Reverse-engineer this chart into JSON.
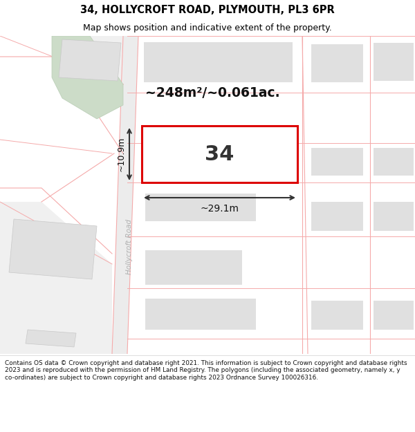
{
  "title": "34, HOLLYCROFT ROAD, PLYMOUTH, PL3 6PR",
  "subtitle": "Map shows position and indicative extent of the property.",
  "footer_lines": [
    "Contains OS data © Crown copyright and database right 2021. This information is subject to Crown copyright and database rights 2023 and is reproduced with the permission of",
    "HM Land Registry. The polygons (including the associated geometry, namely x, y co-ordinates) are subject to Crown copyright and database rights 2023 Ordnance Survey",
    "100026316."
  ],
  "map_bg": "#ffffff",
  "plot_color": "#dd0000",
  "plot_fill": "#ffffff",
  "building_fill": "#e0e0e0",
  "road_line_color": "#f5aaaa",
  "green_fill": "#ccdcc8",
  "area_text": "~248m²/~0.061ac.",
  "number_text": "34",
  "width_text": "~29.1m",
  "height_text": "~10.9m",
  "road_label": "Hollycroft Road",
  "title_fontsize": 10.5,
  "subtitle_fontsize": 9,
  "footer_fontsize": 6.5
}
